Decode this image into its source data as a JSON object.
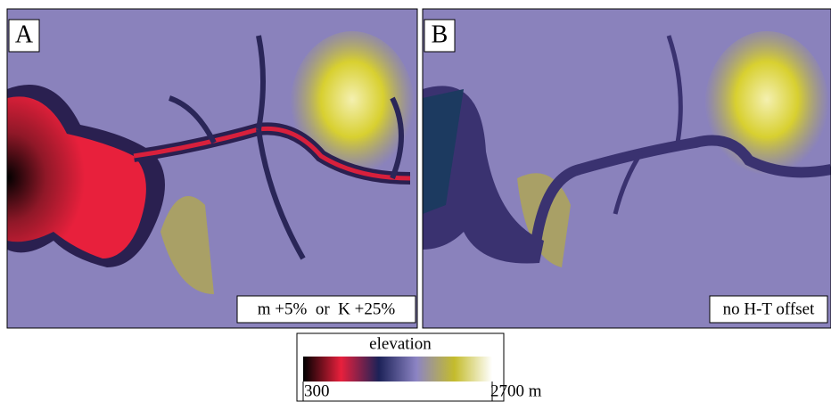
{
  "panels": [
    {
      "letter": "A",
      "annotation": "m +5%  or  K +25%"
    },
    {
      "letter": "B",
      "annotation": "no H-T offset"
    }
  ],
  "colorbar": {
    "title": "elevation",
    "lim": [
      300,
      2700
    ],
    "ticks": [
      300,
      {
        "value": 2700,
        "label": "2700 m"
      }
    ],
    "colors": [
      "#000000",
      "#e8203c",
      "#1c2258",
      "#8c84c4",
      "#c4bc2c",
      "#ffffff"
    ]
  }
}
